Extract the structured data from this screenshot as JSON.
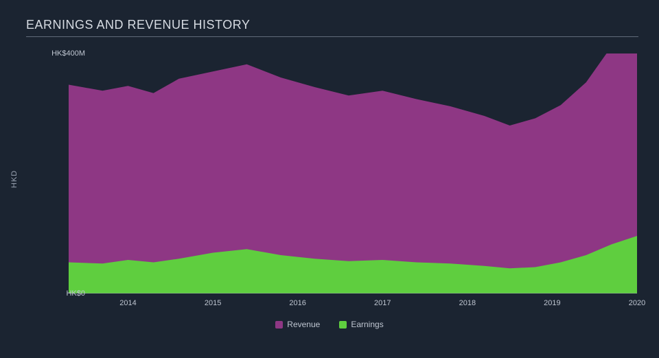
{
  "chart": {
    "type": "area",
    "title": "EARNINGS AND REVENUE HISTORY",
    "title_fontsize": 18,
    "title_color": "#d6dbe2",
    "title_border_color": "#616b7a",
    "ylabel": "HKD",
    "ylabel_color": "#9aa3b2",
    "background_color": "#1b2431",
    "plot_background_color": "#1b2431",
    "axis_label_color": "#bfc6d1",
    "legend_label_color": "#bfc6d1",
    "x": {
      "domain": [
        2013.3,
        2020.0
      ],
      "ticks": [
        2014,
        2015,
        2016,
        2017,
        2018,
        2019,
        2020
      ],
      "tick_labels": [
        "2014",
        "2015",
        "2016",
        "2017",
        "2018",
        "2019",
        "2020"
      ]
    },
    "y": {
      "domain": [
        0,
        400
      ],
      "ticks": [
        0,
        400
      ],
      "tick_labels": [
        "HK$0",
        "HK$400M"
      ],
      "baseline_color": "#8d95a3",
      "baseline_width": 1
    },
    "series": [
      {
        "name": "Earnings",
        "legend_label": "Earnings",
        "color": "#5fce3f",
        "fill_opacity": 1.0,
        "data": [
          {
            "x": 2013.3,
            "y": 52
          },
          {
            "x": 2013.7,
            "y": 50
          },
          {
            "x": 2014.0,
            "y": 56
          },
          {
            "x": 2014.3,
            "y": 52
          },
          {
            "x": 2014.6,
            "y": 58
          },
          {
            "x": 2015.0,
            "y": 68
          },
          {
            "x": 2015.4,
            "y": 74
          },
          {
            "x": 2015.8,
            "y": 64
          },
          {
            "x": 2016.2,
            "y": 58
          },
          {
            "x": 2016.6,
            "y": 54
          },
          {
            "x": 2017.0,
            "y": 56
          },
          {
            "x": 2017.4,
            "y": 52
          },
          {
            "x": 2017.8,
            "y": 50
          },
          {
            "x": 2018.2,
            "y": 46
          },
          {
            "x": 2018.5,
            "y": 42
          },
          {
            "x": 2018.8,
            "y": 44
          },
          {
            "x": 2019.1,
            "y": 52
          },
          {
            "x": 2019.4,
            "y": 64
          },
          {
            "x": 2019.7,
            "y": 82
          },
          {
            "x": 2020.0,
            "y": 96
          }
        ]
      },
      {
        "name": "Revenue",
        "legend_label": "Revenue",
        "color": "#8e3784",
        "fill_opacity": 1.0,
        "data": [
          {
            "x": 2013.3,
            "y": 296
          },
          {
            "x": 2013.7,
            "y": 288
          },
          {
            "x": 2014.0,
            "y": 290
          },
          {
            "x": 2014.3,
            "y": 282
          },
          {
            "x": 2014.6,
            "y": 300
          },
          {
            "x": 2015.0,
            "y": 302
          },
          {
            "x": 2015.4,
            "y": 308
          },
          {
            "x": 2015.8,
            "y": 296
          },
          {
            "x": 2016.2,
            "y": 286
          },
          {
            "x": 2016.6,
            "y": 276
          },
          {
            "x": 2017.0,
            "y": 282
          },
          {
            "x": 2017.4,
            "y": 272
          },
          {
            "x": 2017.8,
            "y": 262
          },
          {
            "x": 2018.2,
            "y": 250
          },
          {
            "x": 2018.5,
            "y": 238
          },
          {
            "x": 2018.8,
            "y": 248
          },
          {
            "x": 2019.1,
            "y": 262
          },
          {
            "x": 2019.4,
            "y": 288
          },
          {
            "x": 2019.7,
            "y": 330
          },
          {
            "x": 2020.0,
            "y": 372
          }
        ]
      }
    ],
    "legend": {
      "position": "bottom-center",
      "items": [
        {
          "label": "Revenue",
          "color": "#8e3784"
        },
        {
          "label": "Earnings",
          "color": "#5fce3f"
        }
      ]
    }
  }
}
